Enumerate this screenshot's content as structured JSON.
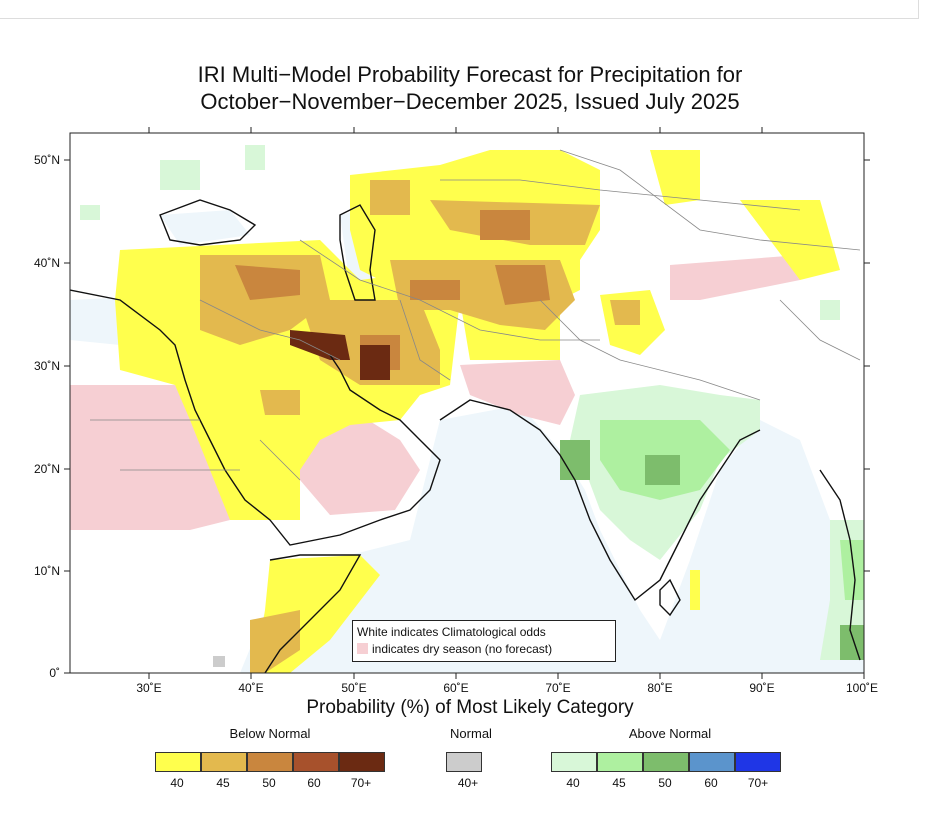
{
  "title_line1": "IRI Multi−Model Probability Forecast for Precipitation for",
  "title_line2": "October−November−December 2025, Issued July 2025",
  "axes": {
    "x_ticks": [
      "30˚E",
      "40˚E",
      "50˚E",
      "60˚E",
      "70˚E",
      "80˚E",
      "90˚E",
      "100˚E"
    ],
    "y_ticks": [
      "50˚N",
      "40˚N",
      "30˚N",
      "20˚N",
      "10˚N",
      "0˚"
    ],
    "lon_range": [
      22,
      100
    ],
    "lat_range": [
      0,
      52
    ]
  },
  "note": {
    "line1": "White indicates Climatological odds",
    "line2": "indicates dry season (no forecast)"
  },
  "x_title": "Probability (%) of Most Likely Category",
  "legend": {
    "below": {
      "label": "Below Normal",
      "ticks": [
        "40",
        "45",
        "50",
        "60",
        "70+"
      ],
      "colors": [
        "#ffff4d",
        "#e3b94e",
        "#c9863e",
        "#a7512c",
        "#6b2a12"
      ]
    },
    "normal": {
      "label": "Normal",
      "ticks": [
        "40+"
      ],
      "colors": [
        "#cccccc"
      ]
    },
    "above": {
      "label": "Above Normal",
      "ticks": [
        "40",
        "45",
        "50",
        "60",
        "70+"
      ],
      "colors": [
        "#d8f7d8",
        "#aef0a0",
        "#7dbd6c",
        "#5b94cc",
        "#1f36e6"
      ]
    }
  },
  "colors": {
    "dry_season": "#f6cfd3",
    "ocean": "#eef6fb",
    "frame": "#222222"
  }
}
